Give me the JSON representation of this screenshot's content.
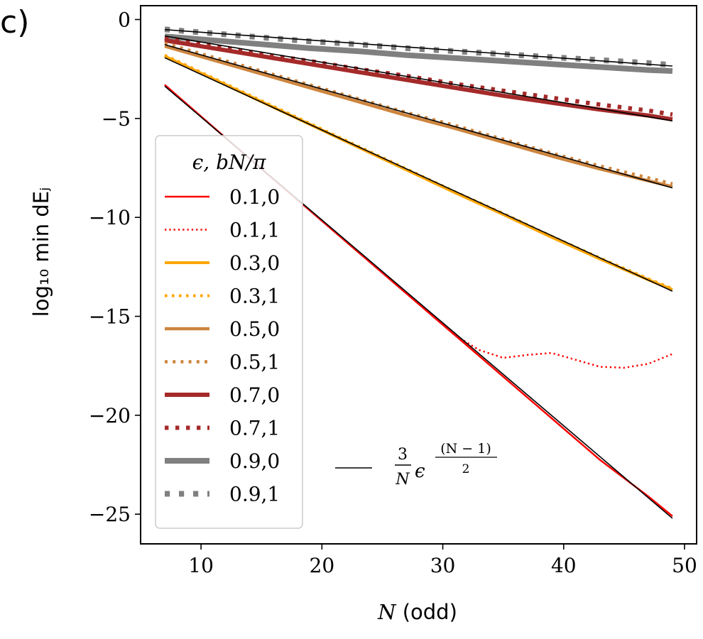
{
  "panel_label": "c)",
  "chart_data": {
    "type": "line",
    "xlabel_math": "N",
    "xlabel_text": "(odd)",
    "ylabel": "log₁₀ min dEⱼ",
    "xlim": [
      5,
      51
    ],
    "ylim": [
      -26.5,
      0.7
    ],
    "xticks": [
      10,
      20,
      30,
      40,
      50
    ],
    "yticks": [
      0,
      -5,
      -10,
      -15,
      -20,
      -25
    ],
    "ytick_labels": [
      "0",
      "−5",
      "−10",
      "−15",
      "−20",
      "−25"
    ],
    "grid": false,
    "legend": {
      "placement": "left",
      "title": "ϵ, bN/π",
      "extra_entry": "(3/N) ϵ^((N−1)/2)"
    },
    "series": [
      {
        "name": "0.1,0",
        "color": "#ff0000",
        "style": "solid",
        "x": [
          7,
          11,
          15,
          19,
          23,
          27,
          31,
          35,
          39,
          43,
          47,
          49
        ],
        "y": [
          -3.3,
          -5.43,
          -7.55,
          -9.65,
          -11.75,
          -13.85,
          -15.95,
          -18.05,
          -20.15,
          -22.25,
          -24.1,
          -25.1
        ]
      },
      {
        "name": "0.1,1",
        "color": "#ff0000",
        "style": "dotted",
        "x": [
          7,
          11,
          15,
          19,
          23,
          27,
          31,
          33,
          35,
          37,
          39,
          41,
          43,
          45,
          47,
          49
        ],
        "y": [
          -3.3,
          -5.43,
          -7.55,
          -9.65,
          -11.75,
          -13.85,
          -15.95,
          -16.7,
          -17.1,
          -16.95,
          -16.85,
          -17.2,
          -17.55,
          -17.6,
          -17.4,
          -16.9
        ]
      },
      {
        "name": "0.3,0",
        "color": "#ffa500",
        "style": "solid",
        "x": [
          7,
          11,
          15,
          19,
          23,
          27,
          31,
          35,
          39,
          43,
          47,
          49
        ],
        "y": [
          -1.85,
          -3.0,
          -4.15,
          -5.3,
          -6.45,
          -7.6,
          -8.75,
          -9.85,
          -11.0,
          -12.1,
          -13.15,
          -13.65
        ]
      },
      {
        "name": "0.3,1",
        "color": "#ffa500",
        "style": "dotted",
        "x": [
          7,
          11,
          15,
          19,
          23,
          27,
          31,
          35,
          39,
          43,
          47,
          49
        ],
        "y": [
          -1.8,
          -2.95,
          -4.1,
          -5.25,
          -6.4,
          -7.55,
          -8.7,
          -9.8,
          -10.95,
          -12.05,
          -13.1,
          -13.6
        ]
      },
      {
        "name": "0.5,0",
        "color": "#cd853f",
        "style": "solid",
        "x": [
          7,
          11,
          15,
          19,
          23,
          27,
          31,
          35,
          39,
          43,
          47,
          49
        ],
        "y": [
          -1.35,
          -2.05,
          -2.75,
          -3.45,
          -4.15,
          -4.85,
          -5.5,
          -6.2,
          -6.9,
          -7.55,
          -8.15,
          -8.45
        ]
      },
      {
        "name": "0.5,1",
        "color": "#cd853f",
        "style": "dotted",
        "x": [
          7,
          11,
          15,
          19,
          23,
          27,
          31,
          35,
          39,
          43,
          47,
          49
        ],
        "y": [
          -1.2,
          -1.9,
          -2.6,
          -3.3,
          -4.0,
          -4.7,
          -5.35,
          -6.05,
          -6.75,
          -7.4,
          -8.0,
          -8.3
        ]
      },
      {
        "name": "0.7,0",
        "color": "#a52a2a",
        "style": "solid",
        "x": [
          7,
          11,
          15,
          19,
          23,
          27,
          31,
          35,
          39,
          43,
          47,
          49
        ],
        "y": [
          -1.05,
          -1.45,
          -1.85,
          -2.25,
          -2.65,
          -3.05,
          -3.45,
          -3.85,
          -4.2,
          -4.55,
          -4.85,
          -5.05
        ]
      },
      {
        "name": "0.7,1",
        "color": "#a52a2a",
        "style": "dotted",
        "x": [
          7,
          11,
          15,
          19,
          23,
          27,
          31,
          35,
          39,
          43,
          47,
          49
        ],
        "y": [
          -0.95,
          -1.35,
          -1.75,
          -2.1,
          -2.5,
          -2.85,
          -3.25,
          -3.6,
          -3.95,
          -4.3,
          -4.6,
          -4.8
        ]
      },
      {
        "name": "0.9,0",
        "color": "#808080",
        "style": "solid",
        "x": [
          7,
          11,
          15,
          19,
          23,
          27,
          31,
          35,
          39,
          43,
          47,
          49
        ],
        "y": [
          -0.85,
          -1.05,
          -1.25,
          -1.45,
          -1.6,
          -1.8,
          -1.95,
          -2.1,
          -2.25,
          -2.4,
          -2.55,
          -2.6
        ]
      },
      {
        "name": "0.9,1",
        "color": "#808080",
        "style": "dotted",
        "x": [
          7,
          11,
          15,
          19,
          23,
          27,
          31,
          35,
          39,
          43,
          47,
          49
        ],
        "y": [
          -0.5,
          -0.7,
          -0.9,
          -1.1,
          -1.25,
          -1.45,
          -1.6,
          -1.75,
          -1.9,
          -2.05,
          -2.2,
          -2.3
        ]
      }
    ],
    "reference_lines": [
      {
        "eps": 0.1,
        "x": [
          7,
          49
        ],
        "y": [
          -3.37,
          -25.21
        ]
      },
      {
        "eps": 0.3,
        "x": [
          7,
          49
        ],
        "y": [
          -1.93,
          -13.73
        ]
      },
      {
        "eps": 0.5,
        "x": [
          7,
          49
        ],
        "y": [
          -1.27,
          -8.51
        ]
      },
      {
        "eps": 0.7,
        "x": [
          7,
          49
        ],
        "y": [
          -0.83,
          -5.12
        ]
      },
      {
        "eps": 0.9,
        "x": [
          7,
          49
        ],
        "y": [
          -0.51,
          -2.35
        ]
      }
    ]
  }
}
